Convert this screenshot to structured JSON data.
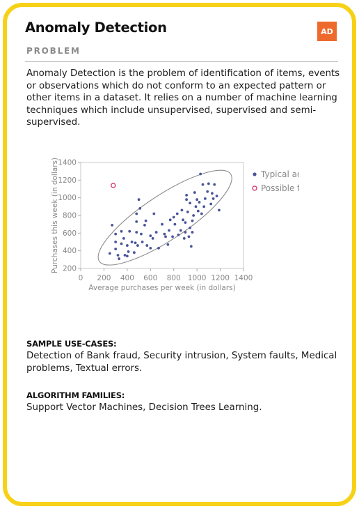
{
  "card": {
    "title": "Anomaly Detection",
    "badge": "AD",
    "section_label": "PROBLEM",
    "description": "Anomaly Detection is the problem of identification of items, events or observations which do not conform to an expected pattern or other items in a dataset. It relies on a number of machine learning techniques which include unsupervised, supervised and semi-supervised.",
    "use_cases_heading": "SAMPLE USE-CASES:",
    "use_cases_text": "Detection of Bank fraud, Security intrusion, System faults, Medical problems, Textual errors.",
    "families_heading": "ALGORITHM FAMILIES:",
    "families_text": "Support Vector Machines, Decision Trees Learning.",
    "colors": {
      "border": "#f7d117",
      "badge": "#ee6a2c",
      "typical": "#4a5599",
      "fraud": "#d6336c"
    }
  },
  "chart_data": {
    "type": "scatter",
    "title": "",
    "xlabel": "Average purchases per week (in dollars)",
    "ylabel": "Purchases this week (in dollars)",
    "xlim": [
      0,
      1400
    ],
    "ylim": [
      200,
      1400
    ],
    "xticks": [
      0,
      200,
      400,
      600,
      800,
      1000,
      1200,
      1400
    ],
    "yticks": [
      200,
      400,
      600,
      800,
      1000,
      1200,
      1400
    ],
    "legend_position": "right",
    "series": [
      {
        "name": "Typical activity",
        "points": [
          [
            250,
            370
          ],
          [
            270,
            690
          ],
          [
            300,
            590
          ],
          [
            300,
            500
          ],
          [
            300,
            420
          ],
          [
            320,
            350
          ],
          [
            330,
            310
          ],
          [
            350,
            480
          ],
          [
            350,
            620
          ],
          [
            370,
            540
          ],
          [
            380,
            350
          ],
          [
            400,
            340
          ],
          [
            400,
            460
          ],
          [
            410,
            390
          ],
          [
            420,
            620
          ],
          [
            440,
            500
          ],
          [
            460,
            380
          ],
          [
            470,
            490
          ],
          [
            480,
            610
          ],
          [
            480,
            730
          ],
          [
            480,
            820
          ],
          [
            490,
            460
          ],
          [
            500,
            980
          ],
          [
            510,
            880
          ],
          [
            520,
            590
          ],
          [
            530,
            500
          ],
          [
            550,
            690
          ],
          [
            560,
            740
          ],
          [
            570,
            460
          ],
          [
            600,
            570
          ],
          [
            600,
            430
          ],
          [
            620,
            540
          ],
          [
            630,
            820
          ],
          [
            650,
            610
          ],
          [
            670,
            430
          ],
          [
            700,
            700
          ],
          [
            720,
            590
          ],
          [
            730,
            560
          ],
          [
            750,
            470
          ],
          [
            760,
            630
          ],
          [
            770,
            750
          ],
          [
            790,
            560
          ],
          [
            800,
            780
          ],
          [
            810,
            700
          ],
          [
            830,
            820
          ],
          [
            840,
            580
          ],
          [
            860,
            630
          ],
          [
            870,
            860
          ],
          [
            880,
            750
          ],
          [
            890,
            540
          ],
          [
            900,
            610
          ],
          [
            900,
            720
          ],
          [
            910,
            980
          ],
          [
            910,
            1030
          ],
          [
            920,
            840
          ],
          [
            930,
            560
          ],
          [
            940,
            660
          ],
          [
            940,
            940
          ],
          [
            950,
            450
          ],
          [
            960,
            610
          ],
          [
            960,
            740
          ],
          [
            970,
            800
          ],
          [
            980,
            1060
          ],
          [
            990,
            900
          ],
          [
            1000,
            980
          ],
          [
            1010,
            850
          ],
          [
            1020,
            950
          ],
          [
            1030,
            1270
          ],
          [
            1040,
            820
          ],
          [
            1050,
            1150
          ],
          [
            1060,
            900
          ],
          [
            1070,
            990
          ],
          [
            1090,
            1070
          ],
          [
            1100,
            1160
          ],
          [
            1120,
            930
          ],
          [
            1130,
            1050
          ],
          [
            1140,
            990
          ],
          [
            1150,
            1150
          ],
          [
            1170,
            1020
          ],
          [
            1190,
            860
          ]
        ]
      },
      {
        "name": "Possible fraud",
        "points": [
          [
            280,
            1140
          ]
        ]
      }
    ]
  }
}
